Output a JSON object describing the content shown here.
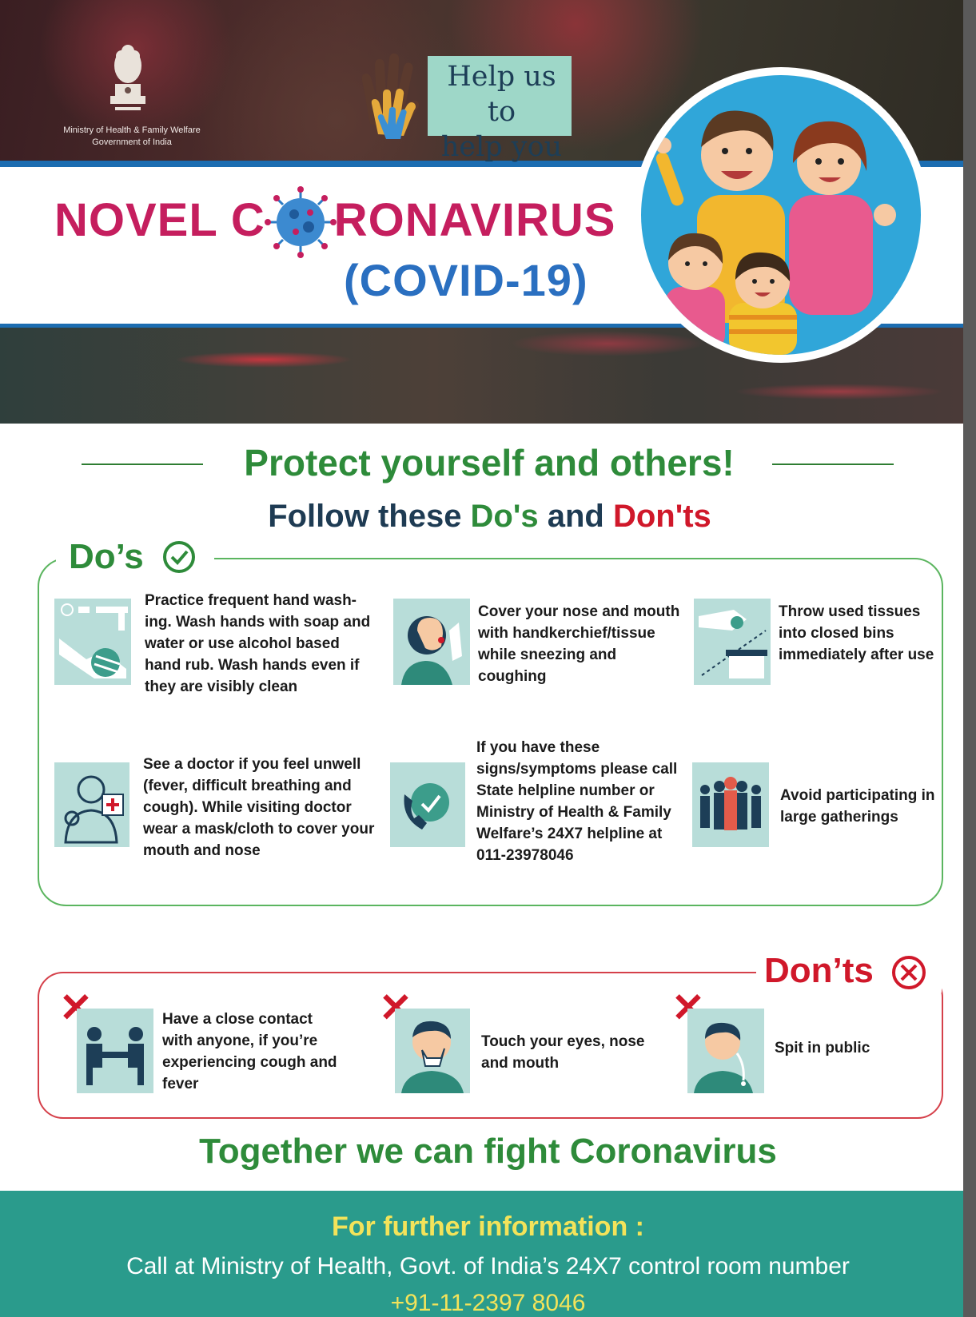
{
  "header": {
    "ministry_line1": "Ministry of Health & Family Welfare",
    "ministry_line2": "Government of India",
    "help_line1": "Help us to",
    "help_line2": "help you"
  },
  "title": {
    "novel_c": "NOVEL C",
    "ronavirus": "RONAVIRUS",
    "covid": "(COVID-19)"
  },
  "intro": {
    "protect": "Protect yourself and others!",
    "follow_prefix": "Follow these ",
    "follow_dos": "Do's",
    "follow_and": " and ",
    "follow_donts": "Don'ts"
  },
  "dos": {
    "title": "Do’s",
    "items": [
      {
        "text": "Practice frequent hand wash- ing. Wash hands with soap and water or use alcohol based hand rub. Wash hands even if they are visibly clean",
        "icon": "hand-wash-icon"
      },
      {
        "text": "Cover your nose and mouth with handkerchief/tissue while sneezing and coughing",
        "icon": "sneeze-cover-icon"
      },
      {
        "text": "Throw used tissues into closed bins immediately after use",
        "icon": "tissue-bin-icon"
      },
      {
        "text": "See a doctor if you feel unwell (fever, difficult breathing and cough). While visiting doctor wear a mask/cloth to cover your mouth and nose",
        "icon": "doctor-icon"
      },
      {
        "text": "If you have these signs/symptoms please call State helpline number or Ministry of Health & Family Welfare’s 24X7 helpline at 011-23978046",
        "icon": "phone-helpline-icon"
      },
      {
        "text": "Avoid participating in large gatherings",
        "icon": "crowd-icon"
      }
    ]
  },
  "donts": {
    "title": "Don’ts",
    "items": [
      {
        "text": "Have a close contact with anyone, if you’re experiencing cough and fever",
        "icon": "close-contact-icon"
      },
      {
        "text": "Touch your eyes, nose and mouth",
        "icon": "touch-face-icon"
      },
      {
        "text": "Spit in public",
        "icon": "spit-icon"
      }
    ]
  },
  "together": "Together we can fight Coronavirus",
  "footer": {
    "title": "For further information :",
    "line": "Call at Ministry of Health, Govt. of India’s  24X7 control room number",
    "phone": "+91-11-2397 8046"
  },
  "colors": {
    "green": "#2e8b3a",
    "red": "#d0182a",
    "navy": "#1e3b53",
    "pink": "#c51e5e",
    "blue": "#2a6fc0",
    "teal": "#2a9b8c",
    "tile": "#b8ddd9"
  }
}
